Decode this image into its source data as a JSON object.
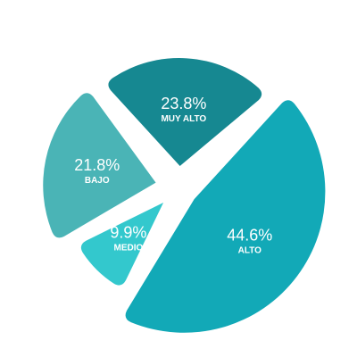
{
  "chart_data": {
    "type": "pie",
    "title": "",
    "slices": [
      {
        "label": "MUY ALTO",
        "value": 23.8,
        "value_text": "23.8%",
        "color": "#168891"
      },
      {
        "label": "ALTO",
        "value": 44.6,
        "value_text": "44.6%",
        "color": "#12a9b7"
      },
      {
        "label": "MEDIO",
        "value": 9.9,
        "value_text": "9.9%",
        "color": "#33c8cd"
      },
      {
        "label": "BAJO",
        "value": 21.8,
        "value_text": "21.8%",
        "color": "#4ab4b6"
      }
    ]
  }
}
